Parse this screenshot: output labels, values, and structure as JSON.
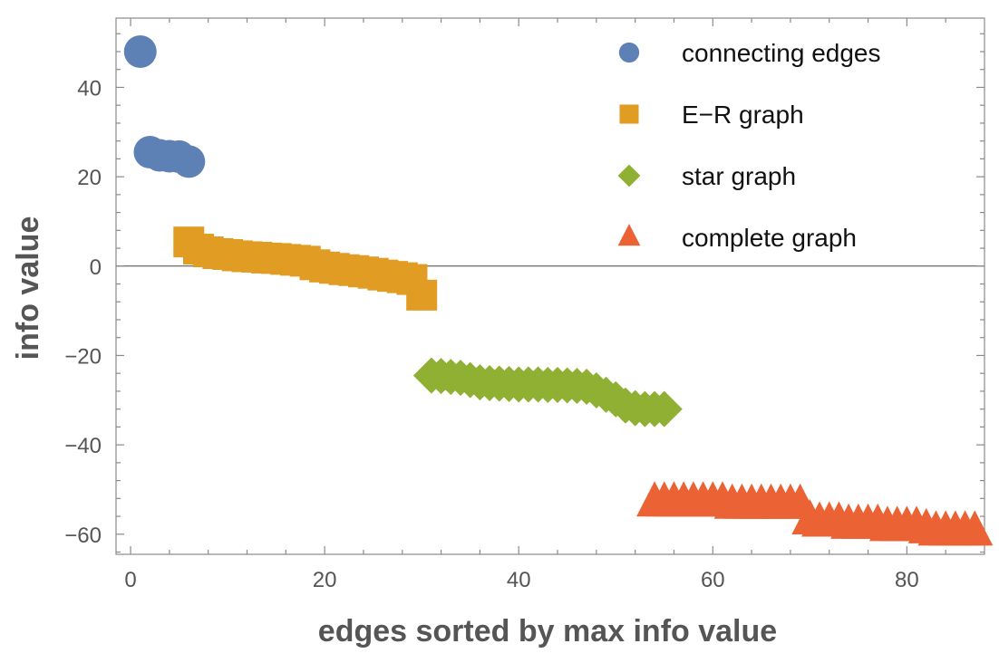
{
  "chart_data": {
    "type": "scatter",
    "title": "",
    "xlabel": "edges sorted by max info value",
    "ylabel": "info value",
    "xlim": [
      -1.5,
      88
    ],
    "ylim": [
      -64.5,
      55.5
    ],
    "xticks": [
      0,
      20,
      40,
      60,
      80
    ],
    "yticks": [
      -60,
      -40,
      -20,
      0,
      20,
      40
    ],
    "xtick_labels": [
      "0",
      "20",
      "40",
      "60",
      "80"
    ],
    "ytick_labels": [
      "−60",
      "−40",
      "−20",
      "0",
      "20",
      "40"
    ],
    "zero_line": true,
    "grid": false,
    "legend_position": "top-right",
    "series": [
      {
        "name": "connecting edges",
        "marker": "circle",
        "color": "#5e81b5",
        "x": [
          1,
          2,
          3,
          4,
          5,
          6
        ],
        "y": [
          48,
          25.5,
          24.8,
          24.6,
          24.5,
          23.4
        ]
      },
      {
        "name": "E−R graph",
        "marker": "square",
        "color": "#e19c24",
        "x": [
          6,
          7,
          8,
          9,
          10,
          11,
          12,
          13,
          14,
          15,
          16,
          17,
          18,
          19,
          20,
          21,
          22,
          23,
          24,
          25,
          26,
          27,
          28,
          29,
          30
        ],
        "y": [
          5.4,
          3.8,
          3.2,
          2.8,
          2.6,
          2.3,
          2.1,
          2.0,
          1.8,
          1.7,
          1.5,
          1.3,
          1.1,
          0.3,
          -0.2,
          -0.5,
          -0.8,
          -1.0,
          -1.3,
          -1.6,
          -2.0,
          -2.3,
          -2.6,
          -3.0,
          -6.5
        ]
      },
      {
        "name": "star graph",
        "marker": "diamond",
        "color": "#8fb032",
        "x": [
          31,
          32,
          33,
          34,
          35,
          36,
          37,
          38,
          39,
          40,
          41,
          42,
          43,
          44,
          45,
          46,
          47,
          48,
          49,
          50,
          51,
          52,
          53,
          54,
          55
        ],
        "y": [
          -24.5,
          -24.6,
          -24.8,
          -25.0,
          -25.5,
          -26.0,
          -26.2,
          -26.3,
          -26.4,
          -26.5,
          -26.5,
          -26.5,
          -26.6,
          -26.6,
          -26.7,
          -26.8,
          -27.0,
          -27.8,
          -28.8,
          -29.8,
          -31.2,
          -31.8,
          -32.0,
          -32.0,
          -32.0
        ]
      },
      {
        "name": "complete graph",
        "marker": "triangle",
        "color": "#eb6235",
        "x": [
          54,
          55,
          56,
          57,
          58,
          59,
          60,
          61,
          62,
          63,
          64,
          65,
          66,
          67,
          68,
          69,
          70,
          71,
          72,
          73,
          74,
          75,
          76,
          77,
          78,
          79,
          80,
          81,
          82,
          83,
          84,
          85,
          86,
          87
        ],
        "y": [
          -53.0,
          -53.0,
          -53.0,
          -53.0,
          -53.0,
          -53.0,
          -53.0,
          -53.0,
          -53.5,
          -53.5,
          -53.5,
          -53.5,
          -53.5,
          -53.5,
          -53.5,
          -53.5,
          -57.0,
          -57.5,
          -57.5,
          -57.5,
          -58.0,
          -58.0,
          -58.0,
          -58.0,
          -58.5,
          -58.5,
          -58.5,
          -58.5,
          -59.0,
          -59.5,
          -59.5,
          -59.5,
          -59.5,
          -59.5
        ]
      }
    ]
  }
}
